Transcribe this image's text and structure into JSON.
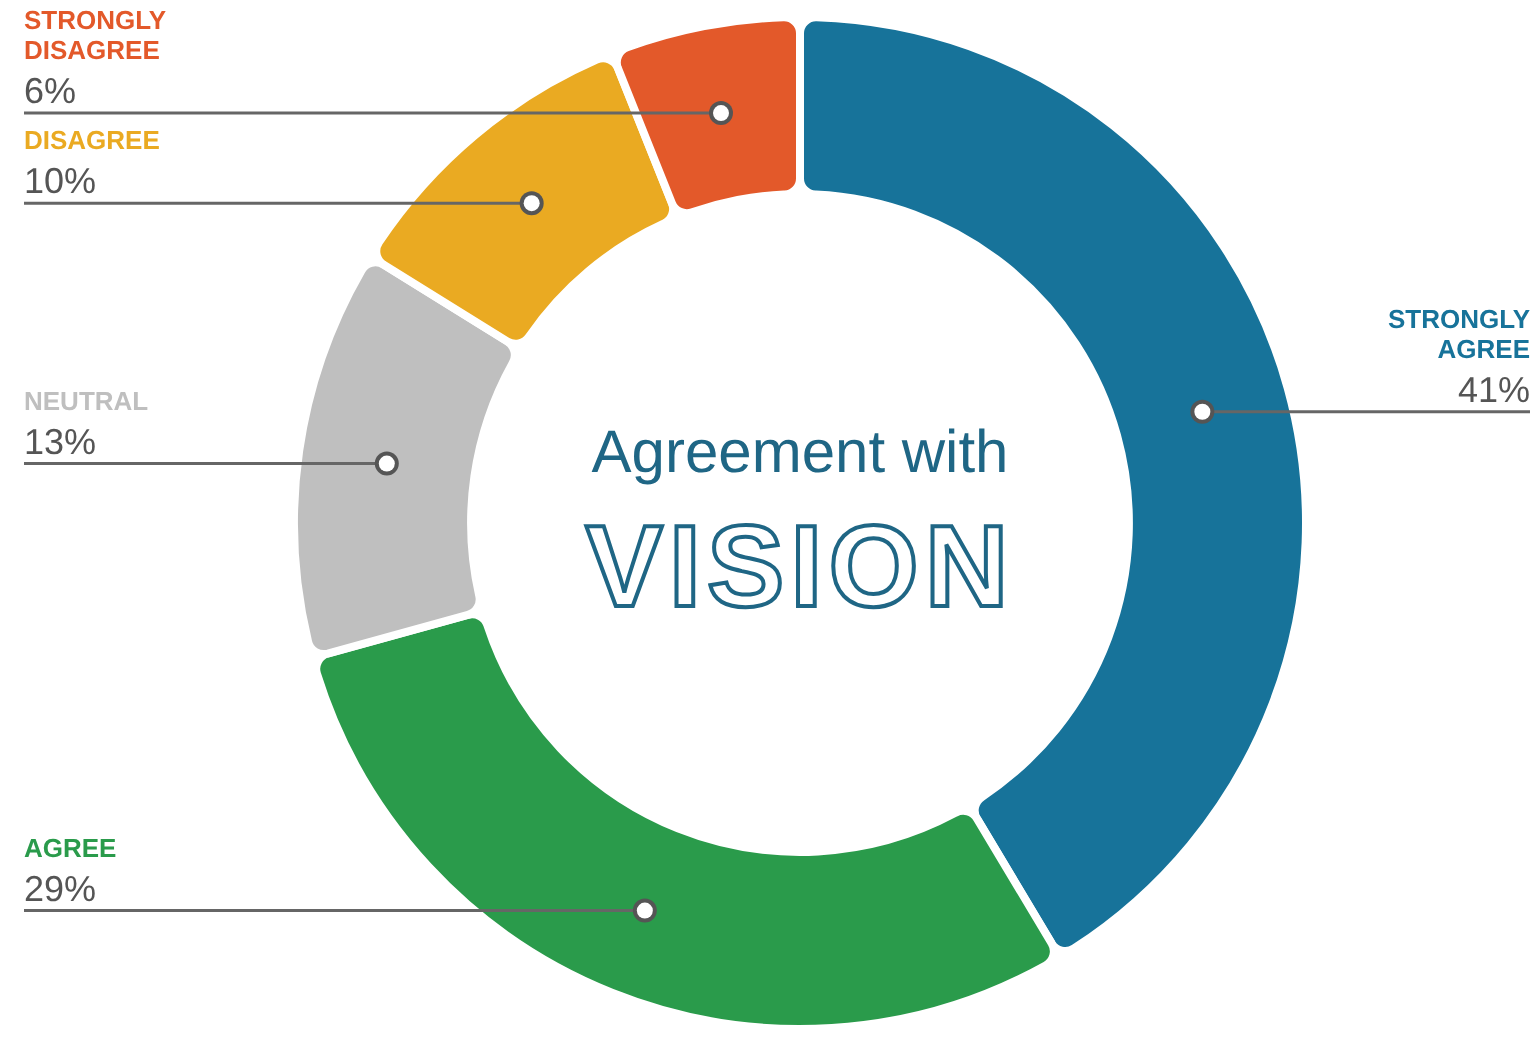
{
  "chart_data": {
    "type": "donut",
    "title": "Agreement with",
    "subtitle": "VISION",
    "categories": [
      "STRONGLY AGREE",
      "AGREE",
      "NEUTRAL",
      "DISAGREE",
      "STRONGLY DISAGREE"
    ],
    "values": [
      41,
      29,
      13,
      10,
      6
    ],
    "value_labels": [
      "41%",
      "29%",
      "13%",
      "10%",
      "6%"
    ],
    "colors": [
      "#17739a",
      "#2a9b4b",
      "#bfbfbf",
      "#eaaa22",
      "#e3592a"
    ],
    "legend": false
  }
}
